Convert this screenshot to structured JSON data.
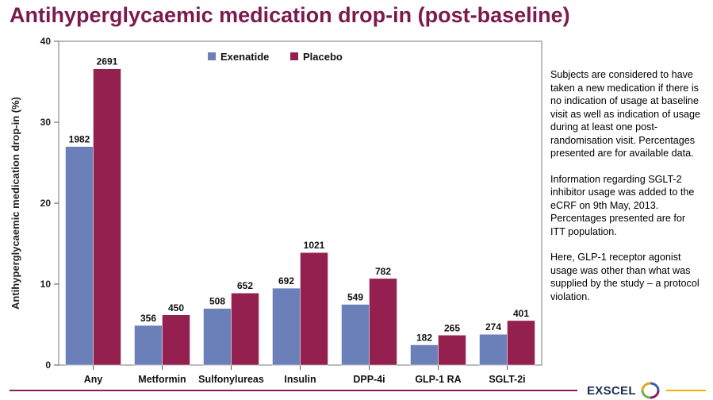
{
  "page": {
    "title": "Antihyperglycaemic medication drop-in (post-baseline)",
    "notes": [
      "Subjects are considered to have taken a new medication if there is no indication of usage at baseline visit as well as indication of usage during at least one post-randomisation visit. Percentages presented are for available data.",
      "Information regarding SGLT-2 inhibitor usage was added to the eCRF on 9th May, 2013. Percentages presented are for ITT population.",
      "Here, GLP-1 receptor agonist usage was other than what was supplied by the study – a protocol violation."
    ],
    "brand": "EXSCEL"
  },
  "colors": {
    "exenatide": "#6b7fb8",
    "placebo": "#93204f",
    "title": "#7b1a4f",
    "footer_left": "#8e1b56",
    "footer_right": "#f0b400"
  },
  "chart_data": {
    "type": "bar",
    "title": "",
    "xlabel": "",
    "ylabel": "Antihyperglycaemic medication drop-in (%)",
    "ylim": [
      0,
      40
    ],
    "yticks": [
      0,
      10,
      20,
      30,
      40
    ],
    "grid": false,
    "legend_position": "top-center",
    "categories": [
      "Any",
      "Metformin",
      "Sulfonylureas",
      "Insulin",
      "DPP-4i",
      "GLP-1 RA",
      "SGLT-2i"
    ],
    "series": [
      {
        "name": "Exenatide",
        "color": "#6b7fb8",
        "values": [
          27.0,
          4.9,
          7.0,
          9.5,
          7.5,
          2.5,
          3.8
        ],
        "labels": [
          "1982",
          "356",
          "508",
          "692",
          "549",
          "182",
          "274"
        ]
      },
      {
        "name": "Placebo",
        "color": "#93204f",
        "values": [
          36.6,
          6.2,
          8.9,
          13.9,
          10.7,
          3.7,
          5.5
        ],
        "labels": [
          "2691",
          "450",
          "652",
          "1021",
          "782",
          "265",
          "401"
        ]
      }
    ]
  }
}
